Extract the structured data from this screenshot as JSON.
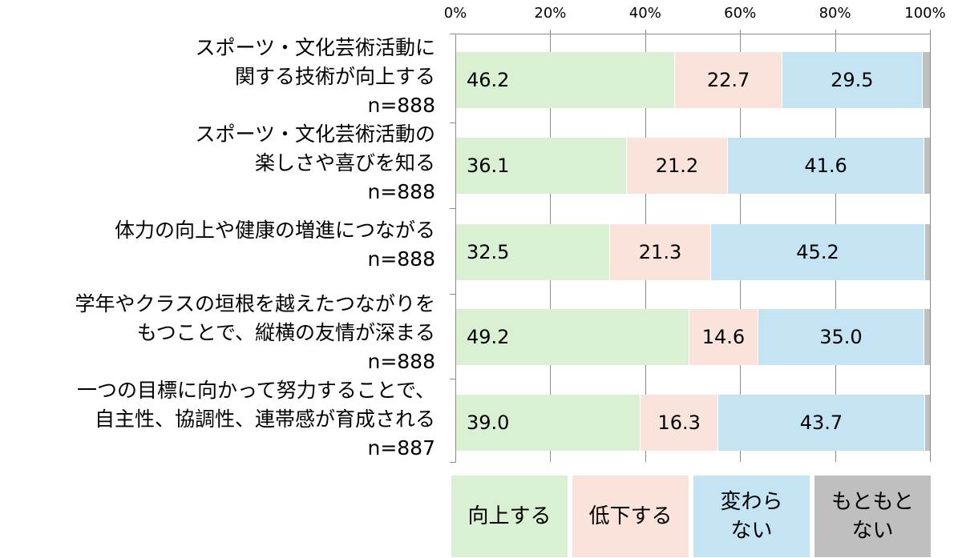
{
  "chart_data": {
    "type": "bar",
    "orientation": "horizontal",
    "stacked": true,
    "percent_stacked": true,
    "title": "",
    "xlabel": "",
    "ylabel": "",
    "xlim": [
      0,
      100
    ],
    "x_ticks": [
      "0%",
      "20%",
      "40%",
      "60%",
      "80%",
      "100%"
    ],
    "grid": true,
    "legend_position": "bottom",
    "categories": [
      "スポーツ・文化芸術活動に\n関する技術が向上する\nn=888",
      "スポーツ・文化芸術活動の\n楽しさや喜びを知る\nn=888",
      "体力の向上や健康の増進につながる\nn=888",
      "学年やクラスの垣根を越えたつながりを\nもつことで、縦横の友情が深まる\nn=888",
      "一つの目標に向かって努力することで、\n自主性、協調性、連帯感が育成される\nn=887"
    ],
    "series": [
      {
        "name": "向上する",
        "color": "#d9f0d3",
        "values": [
          46.2,
          36.1,
          32.5,
          49.2,
          39.0
        ],
        "labels": [
          "46.2",
          "36.1",
          "32.5",
          "49.2",
          "39.0"
        ]
      },
      {
        "name": "低下する",
        "color": "#fae3da",
        "values": [
          22.7,
          21.2,
          21.3,
          14.6,
          16.3
        ],
        "labels": [
          "22.7",
          "21.2",
          "21.3",
          "14.6",
          "16.3"
        ]
      },
      {
        "name": "変わらない",
        "color": "#c4e4f4",
        "values": [
          29.5,
          41.6,
          45.2,
          35.0,
          43.7
        ],
        "labels": [
          "29.5",
          "41.6",
          "45.2",
          "35.0",
          "43.7"
        ]
      },
      {
        "name": "もともとない",
        "color": "#bfbfbf",
        "values": [
          1.6,
          1.1,
          1.0,
          1.2,
          1.0
        ],
        "labels": [
          "",
          "",
          "",
          "",
          ""
        ]
      }
    ]
  },
  "legend": [
    {
      "label": "向上する",
      "color": "#d9f0d3"
    },
    {
      "label": "低下する",
      "color": "#fae3da"
    },
    {
      "label": "変わらない",
      "display": "変わら\nない",
      "color": "#c4e4f4"
    },
    {
      "label": "もともとない",
      "display": "もともと\nない",
      "color": "#bfbfbf"
    }
  ]
}
